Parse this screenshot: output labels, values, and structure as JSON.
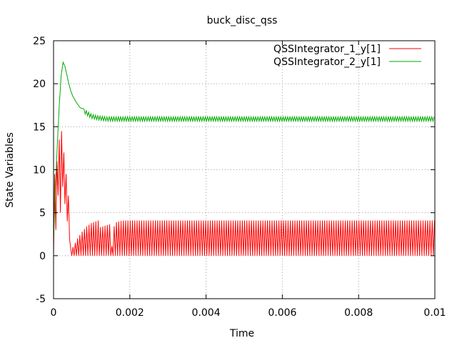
{
  "chart_data": {
    "type": "line",
    "title": "buck_disc_qss",
    "xlabel": "Time",
    "ylabel": "State Variables",
    "xlim": [
      0,
      0.01
    ],
    "ylim": [
      -5,
      25
    ],
    "x_ticks": [
      0,
      0.002,
      0.004,
      0.006,
      0.008,
      0.01
    ],
    "x_tick_labels": [
      "0",
      "0.002",
      "0.004",
      "0.006",
      "0.008",
      "0.01"
    ],
    "y_ticks": [
      -5,
      0,
      5,
      10,
      15,
      20,
      25
    ],
    "y_tick_labels": [
      "-5",
      "0",
      "5",
      "10",
      "15",
      "20",
      "25"
    ],
    "grid": true,
    "legend_position": "top-right",
    "series": [
      {
        "name": "QSSIntegrator_1_y[1]",
        "color": "#ff0000",
        "x": [
          0,
          3e-05,
          6e-05,
          9e-05,
          0.00012,
          0.00015,
          0.00018,
          0.00021,
          0.00024,
          0.00027,
          0.0003,
          0.00033,
          0.00036,
          0.00039,
          0.00042,
          0.00045,
          0.00048,
          0.00051,
          0.00054,
          0.00057,
          0.0006,
          0.00063,
          0.00066,
          0.00069,
          0.00072,
          0.00075,
          0.00078,
          0.00081,
          0.00084,
          0.00087,
          0.0009,
          0.00093,
          0.00096,
          0.00099,
          0.00102,
          0.00105,
          0.00108,
          0.00111,
          0.00114,
          0.00117,
          0.0012,
          0.00123,
          0.00126,
          0.00129,
          0.00132,
          0.00135,
          0.00138,
          0.00141,
          0.00144,
          0.00147,
          0.0015,
          0.0016,
          0.0018,
          0.002,
          0.003,
          0.004,
          0.005,
          0.006,
          0.007,
          0.008,
          0.009,
          0.01
        ],
        "y": [
          0,
          9.5,
          3,
          11,
          7,
          13.5,
          5,
          14.5,
          8,
          12,
          6,
          9.5,
          4,
          7,
          2,
          0.8,
          0,
          1,
          0,
          1.5,
          0,
          2,
          0,
          2.4,
          0,
          2.8,
          0,
          3.1,
          0,
          3.4,
          0,
          3.6,
          0,
          3.8,
          0,
          3.9,
          0,
          4,
          0,
          4.1,
          0,
          4.1,
          0,
          4.1,
          0,
          4.1,
          0,
          4.1,
          0,
          4.1,
          0,
          4.1,
          4.1,
          4.1,
          4.1,
          4.1,
          4.1,
          4.1,
          4.1,
          4.1,
          4.1,
          4.1
        ],
        "oscillation": {
          "from_x": 0.0012,
          "period": 6e-05,
          "low": 0,
          "high": 4.1
        }
      },
      {
        "name": "QSSIntegrator_2_y[1]",
        "color": "#00aa00",
        "x": [
          0,
          5e-05,
          0.0001,
          0.00015,
          0.0002,
          0.00025,
          0.0003,
          0.00035,
          0.0004,
          0.00045,
          0.0005,
          0.0006,
          0.0007,
          0.0008,
          0.0009,
          0.001,
          0.0011,
          0.0012,
          0.0013,
          0.0014,
          0.0015,
          0.002,
          0.003,
          0.004,
          0.005,
          0.006,
          0.007,
          0.008,
          0.009,
          0.01
        ],
        "y": [
          2,
          8,
          13,
          17.5,
          21,
          22.5,
          22,
          21,
          20,
          19.2,
          18.6,
          17.8,
          17.2,
          16.8,
          16.5,
          16.2,
          16.1,
          16,
          15.95,
          15.9,
          15.9,
          15.9,
          15.9,
          15.9,
          15.9,
          15.9,
          15.9,
          15.9,
          15.9,
          15.9
        ],
        "oscillation": {
          "from_x": 0.0008,
          "period": 6e-05,
          "amplitude": 0.25
        }
      }
    ]
  }
}
